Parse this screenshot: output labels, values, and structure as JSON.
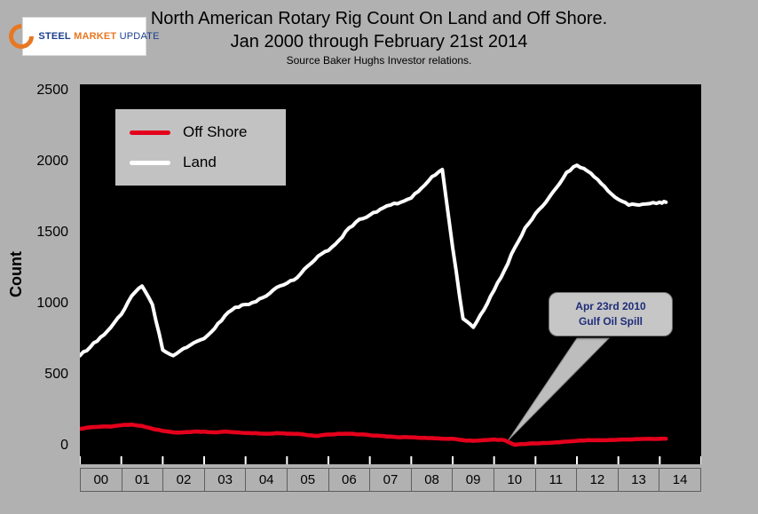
{
  "logo": {
    "word1": "STEEL",
    "word2": "MARKET",
    "word3": "UPDATE"
  },
  "annotation": {
    "line1": "Apr 23rd 2010",
    "line2": "Gulf Oil Spill",
    "target_x": 2010.35,
    "target_value": 60
  },
  "chart_data": {
    "type": "line",
    "title": "North American Rotary Rig Count On Land and Off Shore.",
    "subtitle": "Jan 2000 through February 21st 2014",
    "source": "Source Baker Hughs Investor relations.",
    "xlabel": "",
    "ylabel": "Count",
    "ylim": [
      0,
      2500
    ],
    "x_domain": [
      2000,
      2015
    ],
    "grid": false,
    "legend_position": "upper-left",
    "plot_background": "#000000",
    "page_background": "#b1b1b1",
    "y_tick_values": [
      0,
      500,
      1000,
      1500,
      2000,
      2500
    ],
    "y_tick_labels": [
      "0",
      "500",
      "1000",
      "1500",
      "2000",
      "2500"
    ],
    "x_tick_labels": [
      "00",
      "01",
      "02",
      "03",
      "04",
      "05",
      "06",
      "07",
      "08",
      "09",
      "10",
      "11",
      "12",
      "13",
      "14"
    ],
    "x": [
      2000,
      2000.25,
      2000.5,
      2000.75,
      2001,
      2001.25,
      2001.5,
      2001.75,
      2002,
      2002.25,
      2002.5,
      2002.75,
      2003,
      2003.25,
      2003.5,
      2003.75,
      2004,
      2004.25,
      2004.5,
      2004.75,
      2005,
      2005.25,
      2005.5,
      2005.75,
      2006,
      2006.25,
      2006.5,
      2006.75,
      2007,
      2007.25,
      2007.5,
      2007.75,
      2008,
      2008.25,
      2008.5,
      2008.75,
      2009,
      2009.25,
      2009.5,
      2009.75,
      2010,
      2010.25,
      2010.5,
      2010.75,
      2011,
      2011.25,
      2011.5,
      2011.75,
      2012,
      2012.25,
      2012.5,
      2012.75,
      2013,
      2013.25,
      2013.5,
      2013.75,
      2014,
      2014.15
    ],
    "series": [
      {
        "name": "Off Shore",
        "color": "#e4001c",
        "stroke_width": 4.5,
        "jitter": 4,
        "values": [
          125,
          135,
          140,
          140,
          150,
          155,
          145,
          125,
          110,
          100,
          100,
          105,
          105,
          100,
          105,
          100,
          95,
          95,
          90,
          95,
          90,
          90,
          80,
          75,
          85,
          90,
          90,
          85,
          80,
          75,
          70,
          65,
          65,
          60,
          60,
          55,
          55,
          45,
          40,
          45,
          50,
          45,
          12,
          18,
          22,
          25,
          30,
          35,
          40,
          45,
          45,
          45,
          48,
          50,
          52,
          55,
          55,
          55
        ]
      },
      {
        "name": "Land",
        "color": "#ffffff",
        "stroke_width": 4,
        "jitter": 14,
        "values": [
          640,
          700,
          770,
          840,
          930,
          1060,
          1130,
          1000,
          680,
          640,
          690,
          730,
          760,
          830,
          920,
          980,
          1000,
          1020,
          1060,
          1120,
          1150,
          1190,
          1270,
          1340,
          1380,
          1450,
          1540,
          1600,
          1630,
          1670,
          1700,
          1720,
          1750,
          1820,
          1900,
          1950,
          1400,
          900,
          840,
          960,
          1100,
          1240,
          1400,
          1540,
          1640,
          1720,
          1820,
          1930,
          1980,
          1940,
          1880,
          1800,
          1740,
          1700,
          1700,
          1710,
          1720,
          1720
        ]
      }
    ]
  }
}
